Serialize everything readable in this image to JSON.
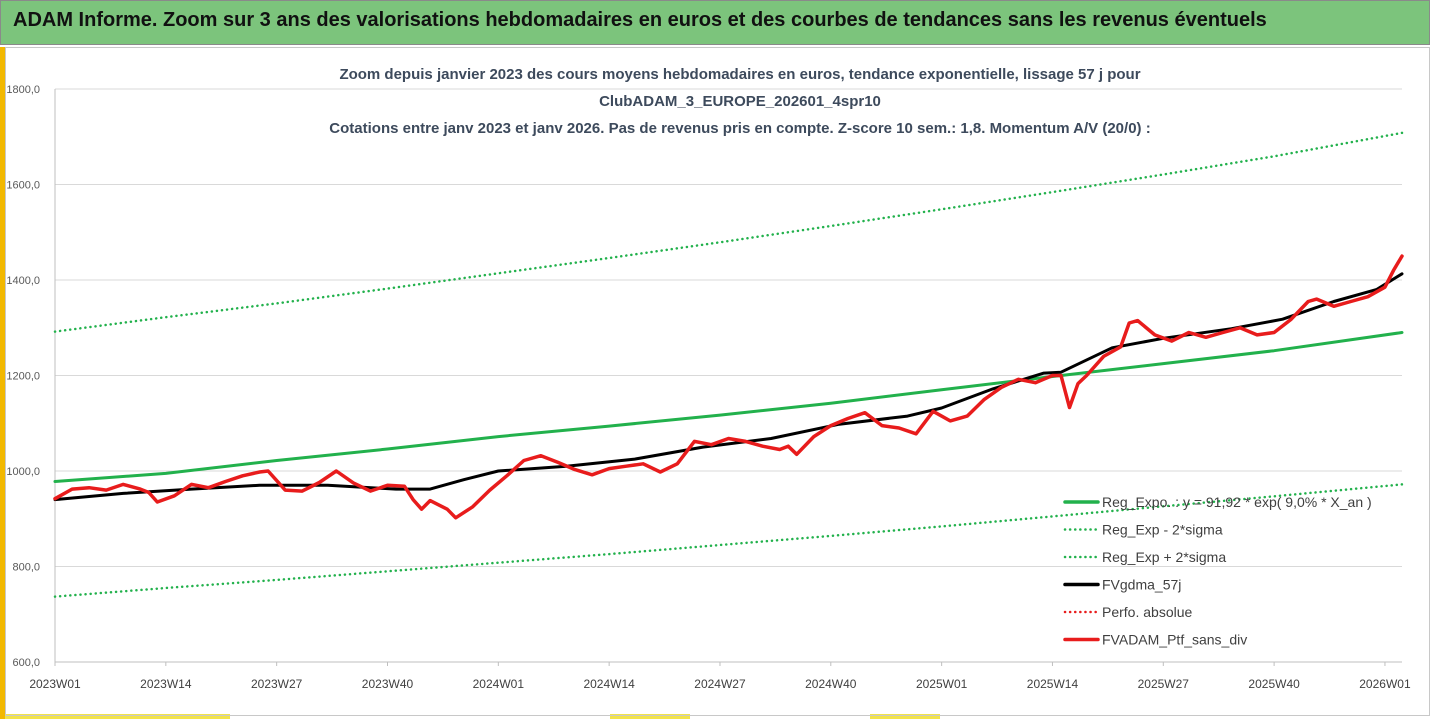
{
  "banner": {
    "title": "ADAM Informe. Zoom sur 3 ans des valorisations hebdomadaires en euros et des courbes de tendances sans les revenus éventuels"
  },
  "chart_data": {
    "type": "line",
    "title_lines": [
      "Zoom depuis janvier 2023 des cours moyens hebdomadaires  en euros, tendance exponentielle, lissage 57 j pour",
      "ClubADAM_3_EUROPE_202601_4spr10",
      "Cotations  entre janv 2023 et janv 2026. Pas de revenus pris en compte. Z-score 10 sem.: 1,8. Momentum A/V (20/0) :"
    ],
    "ylim": [
      600,
      1800
    ],
    "yticks": [
      "600,0",
      "800,0",
      "1000,0",
      "1200,0",
      "1400,0",
      "1600,0",
      "1800,0"
    ],
    "y_tick_values": [
      600,
      800,
      1000,
      1200,
      1400,
      1600,
      1800
    ],
    "xlim": [
      0,
      158
    ],
    "x_ticks": [
      {
        "week": 0,
        "label": "2023W01"
      },
      {
        "week": 13,
        "label": "2023W14"
      },
      {
        "week": 26,
        "label": "2023W27"
      },
      {
        "week": 39,
        "label": "2023W40"
      },
      {
        "week": 52,
        "label": "2024W01"
      },
      {
        "week": 65,
        "label": "2024W14"
      },
      {
        "week": 78,
        "label": "2024W27"
      },
      {
        "week": 91,
        "label": "2024W40"
      },
      {
        "week": 104,
        "label": "2025W01"
      },
      {
        "week": 117,
        "label": "2025W14"
      },
      {
        "week": 130,
        "label": "2025W27"
      },
      {
        "week": 143,
        "label": "2025W40"
      },
      {
        "week": 156,
        "label": "2026W01"
      }
    ],
    "grid": "horizontal",
    "legend_position": "bottom-right",
    "series": [
      {
        "name": "Reg_Expo. : y = 91,92 * exp( 9,0% *  X_an )",
        "color": "#22b14c",
        "style": "solid",
        "points": [
          [
            0,
            978
          ],
          [
            13,
            995
          ],
          [
            26,
            1022
          ],
          [
            39,
            1046
          ],
          [
            52,
            1072
          ],
          [
            65,
            1094
          ],
          [
            78,
            1117
          ],
          [
            91,
            1142
          ],
          [
            104,
            1170
          ],
          [
            117,
            1198
          ],
          [
            130,
            1225
          ],
          [
            143,
            1252
          ],
          [
            158,
            1290
          ]
        ]
      },
      {
        "name": "Reg_Exp - 2*sigma",
        "color": "#22b14c",
        "style": "dotted",
        "points": [
          [
            0,
            737
          ],
          [
            13,
            755
          ],
          [
            26,
            772
          ],
          [
            39,
            790
          ],
          [
            52,
            808
          ],
          [
            65,
            826
          ],
          [
            78,
            845
          ],
          [
            91,
            864
          ],
          [
            104,
            884
          ],
          [
            117,
            905
          ],
          [
            130,
            926
          ],
          [
            143,
            947
          ],
          [
            158,
            972
          ]
        ]
      },
      {
        "name": "Reg_Exp + 2*sigma",
        "color": "#22b14c",
        "style": "dotted",
        "points": [
          [
            0,
            1292
          ],
          [
            13,
            1322
          ],
          [
            26,
            1351
          ],
          [
            39,
            1382
          ],
          [
            52,
            1414
          ],
          [
            65,
            1446
          ],
          [
            78,
            1479
          ],
          [
            91,
            1513
          ],
          [
            104,
            1548
          ],
          [
            117,
            1584
          ],
          [
            130,
            1621
          ],
          [
            143,
            1659
          ],
          [
            158,
            1708
          ]
        ]
      },
      {
        "name": "FVgdma_57j",
        "color": "#000000",
        "style": "solid",
        "points": [
          [
            0,
            940
          ],
          [
            8,
            953
          ],
          [
            16,
            962
          ],
          [
            24,
            970
          ],
          [
            32,
            970
          ],
          [
            40,
            962
          ],
          [
            44,
            962
          ],
          [
            48,
            982
          ],
          [
            52,
            1000
          ],
          [
            60,
            1010
          ],
          [
            68,
            1025
          ],
          [
            76,
            1050
          ],
          [
            84,
            1068
          ],
          [
            92,
            1098
          ],
          [
            100,
            1115
          ],
          [
            104,
            1132
          ],
          [
            110,
            1172
          ],
          [
            116,
            1205
          ],
          [
            118,
            1207
          ],
          [
            124,
            1258
          ],
          [
            130,
            1278
          ],
          [
            138,
            1298
          ],
          [
            144,
            1318
          ],
          [
            150,
            1355
          ],
          [
            155,
            1380
          ],
          [
            158,
            1413
          ]
        ]
      },
      {
        "name": "Perfo. absolue",
        "color": "#e81c1c",
        "style": "dotted",
        "points": []
      },
      {
        "name": "FVADAM_Ptf_sans_div",
        "color": "#e81c1c",
        "style": "solid",
        "points": [
          [
            0,
            942
          ],
          [
            2,
            962
          ],
          [
            4,
            965
          ],
          [
            6,
            960
          ],
          [
            8,
            972
          ],
          [
            10,
            962
          ],
          [
            11,
            955
          ],
          [
            12,
            935
          ],
          [
            14,
            948
          ],
          [
            16,
            972
          ],
          [
            18,
            965
          ],
          [
            20,
            978
          ],
          [
            22,
            990
          ],
          [
            24,
            998
          ],
          [
            25,
            1000
          ],
          [
            27,
            960
          ],
          [
            29,
            958
          ],
          [
            31,
            976
          ],
          [
            33,
            1000
          ],
          [
            35,
            975
          ],
          [
            37,
            958
          ],
          [
            39,
            970
          ],
          [
            41,
            968
          ],
          [
            42,
            940
          ],
          [
            43,
            920
          ],
          [
            44,
            938
          ],
          [
            46,
            920
          ],
          [
            47,
            902
          ],
          [
            49,
            925
          ],
          [
            51,
            960
          ],
          [
            53,
            990
          ],
          [
            55,
            1022
          ],
          [
            57,
            1032
          ],
          [
            59,
            1018
          ],
          [
            61,
            1003
          ],
          [
            63,
            992
          ],
          [
            65,
            1005
          ],
          [
            67,
            1010
          ],
          [
            69,
            1015
          ],
          [
            71,
            998
          ],
          [
            73,
            1015
          ],
          [
            75,
            1062
          ],
          [
            77,
            1055
          ],
          [
            79,
            1068
          ],
          [
            81,
            1062
          ],
          [
            83,
            1052
          ],
          [
            85,
            1045
          ],
          [
            86,
            1052
          ],
          [
            87,
            1035
          ],
          [
            89,
            1072
          ],
          [
            91,
            1095
          ],
          [
            93,
            1110
          ],
          [
            95,
            1122
          ],
          [
            97,
            1095
          ],
          [
            99,
            1090
          ],
          [
            101,
            1078
          ],
          [
            103,
            1125
          ],
          [
            105,
            1105
          ],
          [
            107,
            1115
          ],
          [
            109,
            1150
          ],
          [
            111,
            1175
          ],
          [
            113,
            1192
          ],
          [
            115,
            1185
          ],
          [
            117,
            1200
          ],
          [
            118,
            1200
          ],
          [
            119,
            1133
          ],
          [
            120,
            1183
          ],
          [
            121,
            1200
          ],
          [
            123,
            1240
          ],
          [
            125,
            1260
          ],
          [
            126,
            1310
          ],
          [
            127,
            1315
          ],
          [
            129,
            1285
          ],
          [
            131,
            1272
          ],
          [
            133,
            1290
          ],
          [
            135,
            1280
          ],
          [
            137,
            1290
          ],
          [
            139,
            1300
          ],
          [
            141,
            1285
          ],
          [
            143,
            1290
          ],
          [
            145,
            1318
          ],
          [
            147,
            1355
          ],
          [
            148,
            1360
          ],
          [
            150,
            1345
          ],
          [
            152,
            1355
          ],
          [
            154,
            1365
          ],
          [
            156,
            1385
          ],
          [
            157,
            1420
          ],
          [
            158,
            1450
          ]
        ]
      }
    ]
  }
}
